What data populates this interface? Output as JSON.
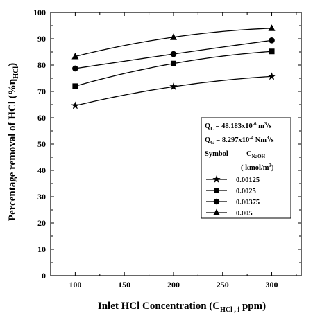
{
  "chart_data": {
    "type": "line",
    "title": "",
    "xlabel": {
      "main": "Inlet HCl Concentration (C",
      "sub": "HCl , i",
      "tail": "  ppm)"
    },
    "ylabel": {
      "main": "Percentage removal of HCl  (%η",
      "sub": "HCl",
      "tail": ")"
    },
    "xlim": [
      75,
      330
    ],
    "ylim": [
      0,
      100
    ],
    "xticks": [
      100,
      150,
      200,
      250,
      300
    ],
    "yticks": [
      0,
      10,
      20,
      30,
      40,
      50,
      60,
      70,
      80,
      90,
      100
    ],
    "grid": false,
    "legend_position": "center-right",
    "x": [
      100,
      200,
      300
    ],
    "series": [
      {
        "name": "0.00125",
        "marker": "star",
        "values": [
          64.6,
          71.8,
          75.7
        ]
      },
      {
        "name": "0.0025",
        "marker": "square",
        "values": [
          72.0,
          80.6,
          85.2
        ]
      },
      {
        "name": "0.00375",
        "marker": "circle",
        "values": [
          78.7,
          84.2,
          89.4
        ]
      },
      {
        "name": "0.005",
        "marker": "triangle",
        "values": [
          83.3,
          90.6,
          94.0
        ]
      }
    ],
    "legend": {
      "ql": {
        "main": "Q",
        "sub": "L",
        "rest": " = 48.183x10",
        "sup": "-6",
        "tail": " m",
        "sup2": "3",
        "tail2": "/s"
      },
      "qg": {
        "main": "Q",
        "sub": "G",
        "rest": " = 8.297x10",
        "sup": "-4",
        "tail": " Nm",
        "sup2": "3",
        "tail2": "/s"
      },
      "symbol_header": "Symbol",
      "c_header": {
        "main": "C",
        "sub": "NaOH"
      },
      "units": {
        "main": "( kmol/m",
        "sup": "3",
        "tail": ")"
      }
    },
    "colors": {
      "line": "#000000",
      "background": "#ffffff"
    }
  }
}
